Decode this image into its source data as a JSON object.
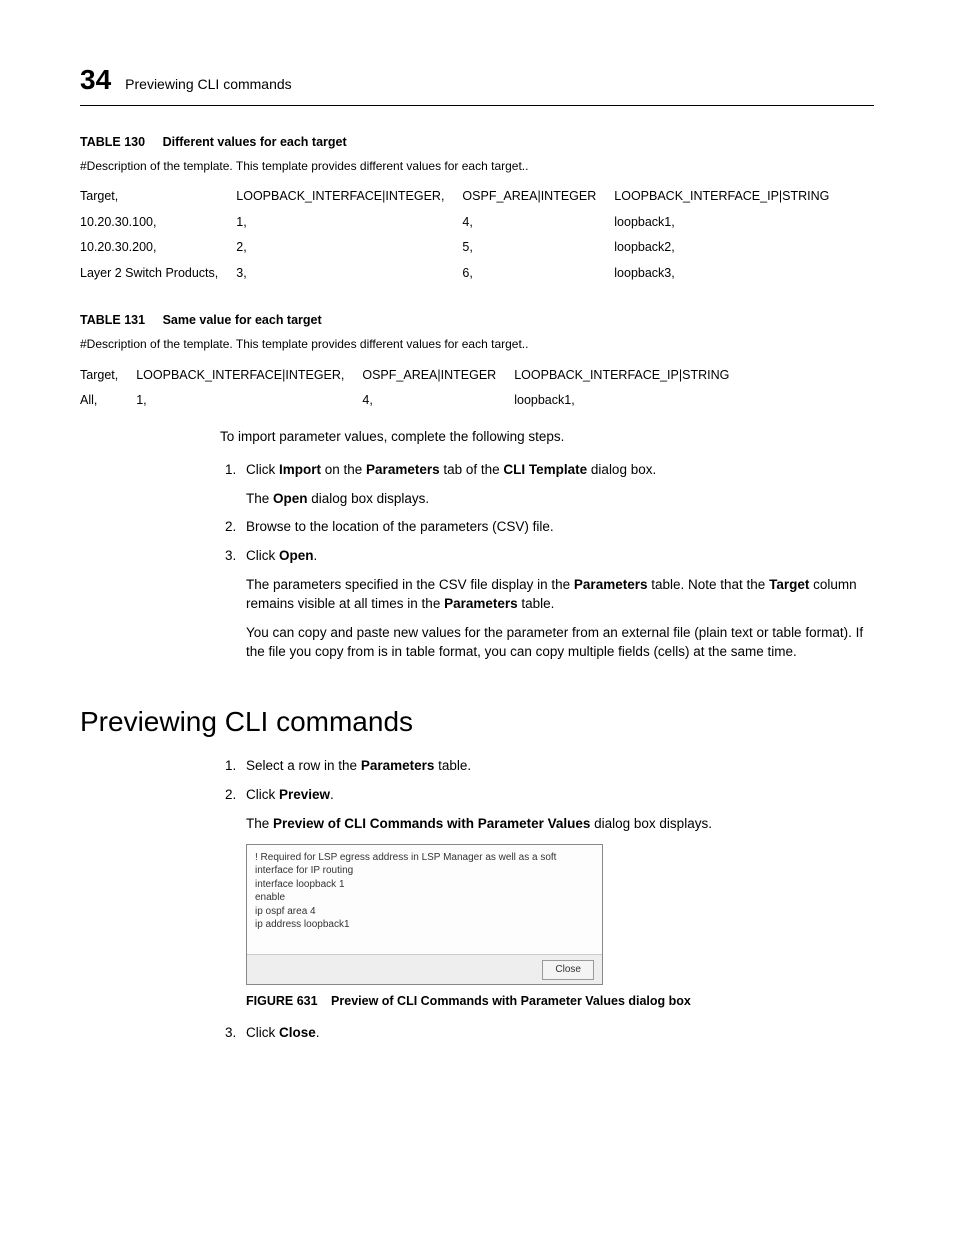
{
  "header": {
    "chapter_number": "34",
    "running_title": "Previewing CLI commands"
  },
  "table130": {
    "label": "TABLE 130",
    "title": "Different values for each target",
    "description": "#Description of the template. This template provides different values for each target..",
    "columns": [
      "Target,",
      "LOOPBACK_INTERFACE|INTEGER,",
      "OSPF_AREA|INTEGER",
      "LOOPBACK_INTERFACE_IP|STRING"
    ],
    "rows": [
      [
        "10.20.30.100,",
        "1,",
        "4,",
        "loopback1,"
      ],
      [
        "10.20.30.200,",
        "2,",
        "5,",
        "loopback2,"
      ],
      [
        "Layer 2 Switch Products,",
        "3,",
        "6,",
        "loopback3,"
      ]
    ]
  },
  "table131": {
    "label": "TABLE 131",
    "title": "Same value for each target",
    "description": "#Description of the template. This template provides different values for each target..",
    "columns": [
      "Target,",
      "LOOPBACK_INTERFACE|INTEGER,",
      "OSPF_AREA|INTEGER",
      "LOOPBACK_INTERFACE_IP|STRING"
    ],
    "rows": [
      [
        "All,",
        "1,",
        "4,",
        "loopback1,"
      ]
    ]
  },
  "body1": {
    "intro": "To import parameter values, complete the following steps.",
    "step1_a": "Click ",
    "step1_b": "Import",
    "step1_c": " on the ",
    "step1_d": "Parameters",
    "step1_e": " tab of the ",
    "step1_f": "CLI Template",
    "step1_g": " dialog box.",
    "step1_sub_a": "The ",
    "step1_sub_b": "Open",
    "step1_sub_c": " dialog box displays.",
    "step2": "Browse to the location of the parameters (CSV) file.",
    "step3_a": "Click ",
    "step3_b": "Open",
    "step3_c": ".",
    "step3_sub1_a": "The parameters specified in the CSV file display in the ",
    "step3_sub1_b": "Parameters",
    "step3_sub1_c": " table. Note that the ",
    "step3_sub1_d": "Target",
    "step3_sub1_e": " column remains visible at all times in the ",
    "step3_sub1_f": "Parameters",
    "step3_sub1_g": " table.",
    "step3_sub2": "You can copy and paste new values for the parameter from an external file (plain text or table format). If the file you copy from is in table format, you can copy multiple fields (cells) at the same time."
  },
  "section_heading": "Previewing CLI commands",
  "body2": {
    "step1_a": "Select a row in the ",
    "step1_b": "Parameters",
    "step1_c": " table.",
    "step2_a": "Click ",
    "step2_b": "Preview",
    "step2_c": ".",
    "step2_sub_a": "The ",
    "step2_sub_b": "Preview of CLI Commands with Parameter Values",
    "step2_sub_c": " dialog box displays.",
    "step3_a": "Click ",
    "step3_b": "Close",
    "step3_c": "."
  },
  "figure": {
    "lines": [
      "! Required for LSP egress address in LSP Manager as well as a soft interface for IP routing",
      "interface loopback  1",
      "enable",
      "ip ospf area  4",
      "ip address   loopback1"
    ],
    "close_label": "Close",
    "label": "FIGURE 631",
    "title": "Preview of CLI Commands with Parameter Values dialog box"
  }
}
